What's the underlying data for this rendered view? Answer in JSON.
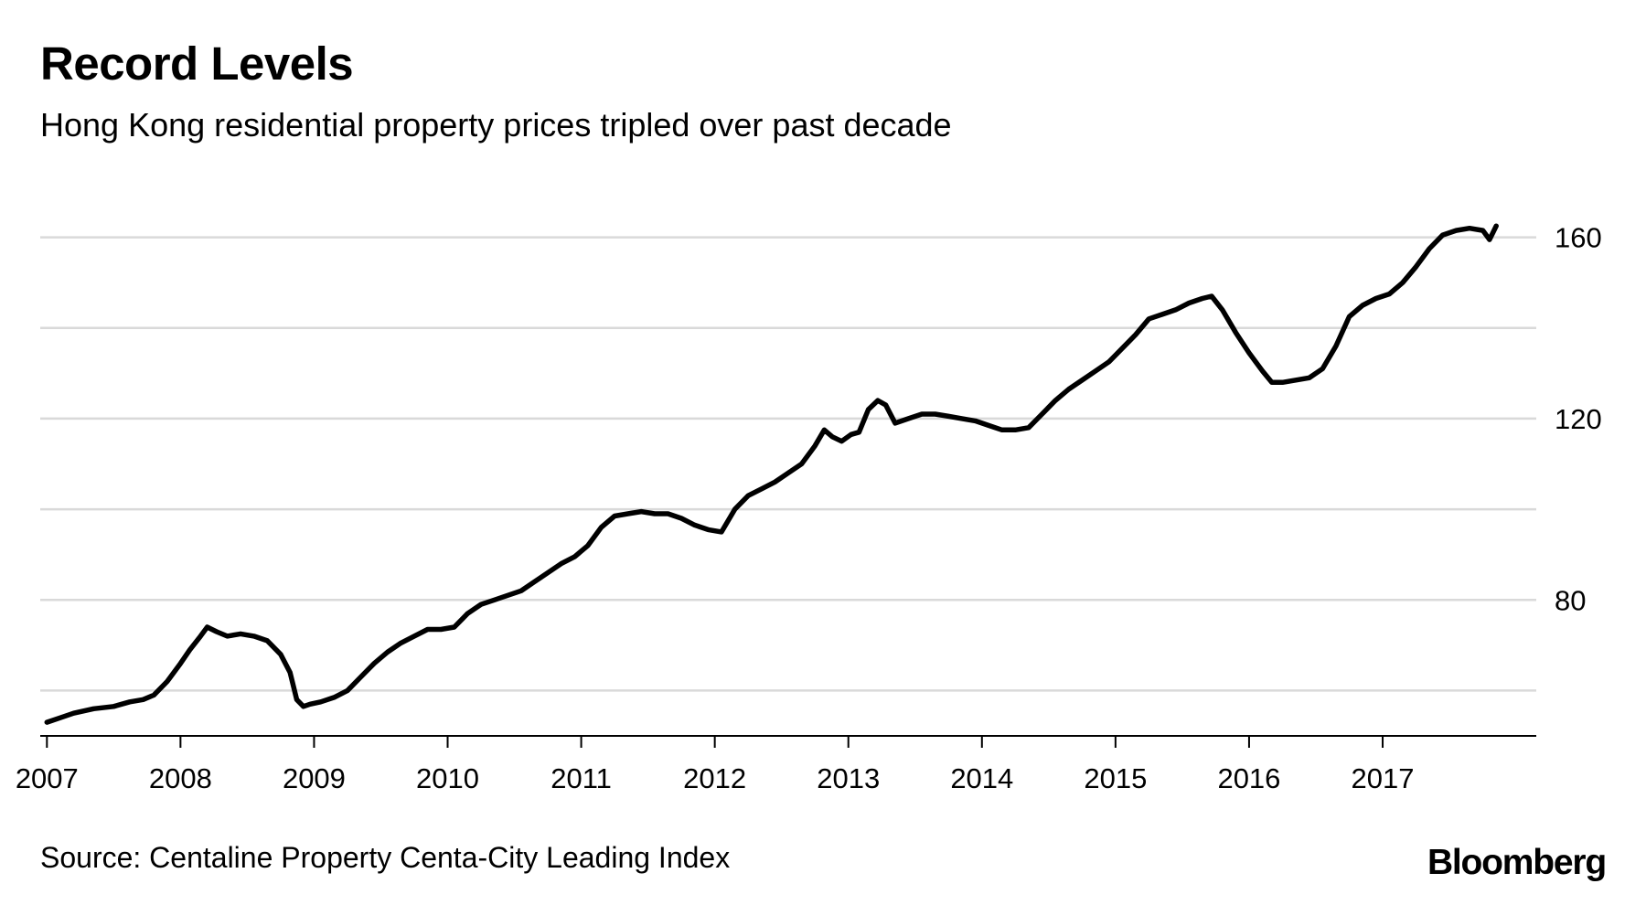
{
  "header": {
    "title": "Record Levels",
    "subtitle": "Hong Kong residential property prices tripled over past decade"
  },
  "footer": {
    "source": "Source: Centaline Property Centa-City Leading Index",
    "logo_text": "Bloomberg"
  },
  "colors": {
    "line": "#000000",
    "grid": "#d9d9d9",
    "background": "#ffffff"
  },
  "chart_data": {
    "type": "line",
    "title": "Record Levels",
    "subtitle": "Hong Kong residential property prices tripled over past decade",
    "xlabel": "",
    "ylabel": "",
    "xlim": [
      2006.95,
      2018.15
    ],
    "ylim": [
      50,
      170
    ],
    "x_ticks": [
      2007,
      2008,
      2009,
      2010,
      2011,
      2012,
      2013,
      2014,
      2015,
      2016,
      2017
    ],
    "x_tick_labels": [
      "2007",
      "2008",
      "2009",
      "2010",
      "2011",
      "2012",
      "2013",
      "2014",
      "2015",
      "2016",
      "2017"
    ],
    "gridlines_y": [
      60,
      80,
      100,
      120,
      140,
      160
    ],
    "y_ticks": [
      80,
      120,
      160
    ],
    "y_tick_labels": [
      "80",
      "120",
      "160"
    ],
    "y_axis_side": "right",
    "grid": true,
    "legend": "none",
    "series": [
      {
        "x": [
          2007.0,
          2007.1,
          2007.2,
          2007.35,
          2007.5,
          2007.62,
          2007.72,
          2007.8,
          2007.9,
          2008.0,
          2008.07,
          2008.15,
          2008.2,
          2008.27,
          2008.35,
          2008.45,
          2008.55,
          2008.65,
          2008.75,
          2008.82,
          2008.87,
          2008.92,
          2008.97,
          2009.05,
          2009.15,
          2009.25,
          2009.35,
          2009.45,
          2009.55,
          2009.65,
          2009.75,
          2009.85,
          2009.95,
          2010.05,
          2010.15,
          2010.25,
          2010.35,
          2010.45,
          2010.55,
          2010.65,
          2010.75,
          2010.85,
          2010.95,
          2011.05,
          2011.15,
          2011.25,
          2011.35,
          2011.45,
          2011.55,
          2011.65,
          2011.75,
          2011.85,
          2011.95,
          2012.05,
          2012.15,
          2012.25,
          2012.35,
          2012.45,
          2012.55,
          2012.65,
          2012.75,
          2012.82,
          2012.88,
          2012.95,
          2013.02,
          2013.08,
          2013.15,
          2013.22,
          2013.28,
          2013.35,
          2013.45,
          2013.55,
          2013.65,
          2013.75,
          2013.85,
          2013.95,
          2014.05,
          2014.15,
          2014.25,
          2014.35,
          2014.45,
          2014.55,
          2014.65,
          2014.75,
          2014.85,
          2014.95,
          2015.05,
          2015.15,
          2015.25,
          2015.35,
          2015.45,
          2015.55,
          2015.65,
          2015.72,
          2015.8,
          2015.9,
          2016.0,
          2016.1,
          2016.17,
          2016.25,
          2016.35,
          2016.45,
          2016.55,
          2016.65,
          2016.75,
          2016.85,
          2016.95,
          2017.05,
          2017.15,
          2017.25,
          2017.35,
          2017.45,
          2017.55,
          2017.65,
          2017.75,
          2017.8,
          2017.85
        ],
        "values": [
          53,
          54,
          55,
          56,
          56.5,
          57.5,
          58,
          59,
          62,
          66,
          69,
          72,
          74,
          73,
          72,
          72.5,
          72,
          71,
          68,
          64,
          58,
          56.5,
          57,
          57.5,
          58.5,
          60,
          63,
          66,
          68.5,
          70.5,
          72,
          73.5,
          73.5,
          74,
          77,
          79,
          80,
          81,
          82,
          84,
          86,
          88,
          89.5,
          92,
          96,
          98.5,
          99,
          99.5,
          99,
          99,
          98,
          96.5,
          95.5,
          95,
          100,
          103,
          104.5,
          106,
          108,
          110,
          114,
          117.5,
          116,
          115,
          116.5,
          117,
          122,
          124,
          123,
          119,
          120,
          121,
          121,
          120.5,
          120,
          119.5,
          118.5,
          117.5,
          117.5,
          118,
          121,
          124,
          126.5,
          128.5,
          130.5,
          132.5,
          135.5,
          138.5,
          142,
          143,
          144,
          145.5,
          146.5,
          147,
          144,
          139,
          134.5,
          130.5,
          128,
          128,
          128.5,
          129,
          131,
          136,
          142.5,
          145,
          146.5,
          147.5,
          150,
          153.5,
          157.5,
          160.5,
          161.5,
          162,
          161.5,
          159.5,
          162.5
        ]
      }
    ]
  }
}
